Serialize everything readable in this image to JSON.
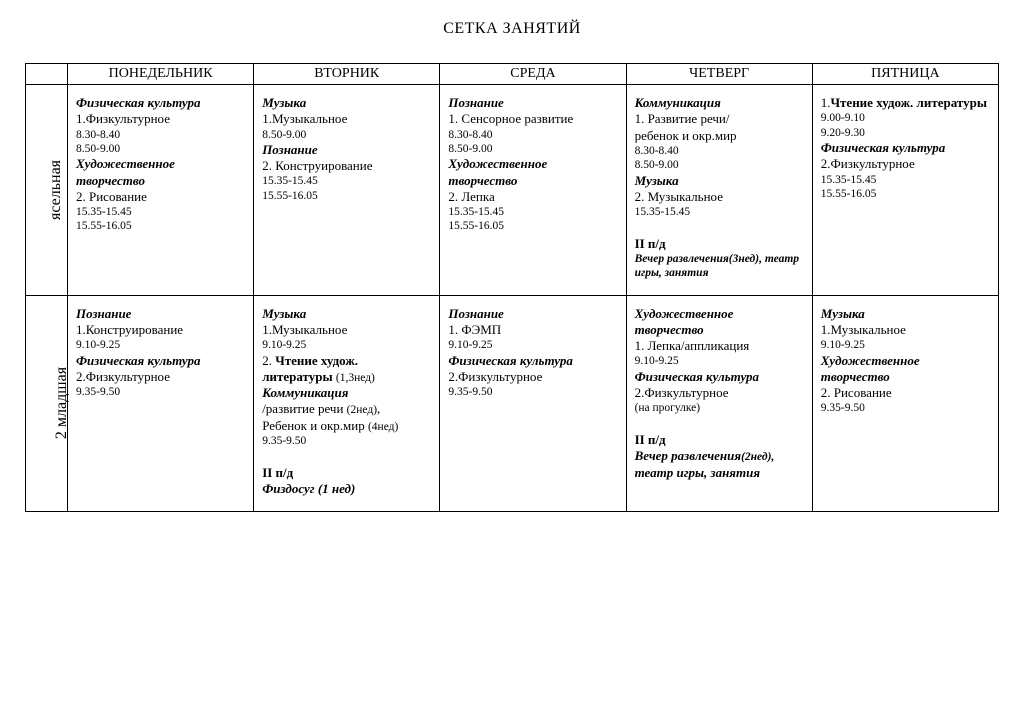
{
  "title": "СЕТКА ЗАНЯТИЙ",
  "days": [
    "ПОНЕДЕЛЬНИК",
    "ВТОРНИК",
    "СРЕДА",
    "ЧЕТВЕРГ",
    "ПЯТНИЦА"
  ],
  "rows": [
    {
      "group": "ясельная",
      "cells": [
        [
          {
            "t": "Физическая культура",
            "c": "b"
          },
          {
            "t": "1.Физкультурное"
          },
          {
            "t": "8.30-8.40",
            "c": "sm"
          },
          {
            "t": "8.50-9.00",
            "c": "sm"
          },
          {
            "t": "Художественное творчество",
            "c": "b"
          },
          {
            "t": "2. Рисование"
          },
          {
            "t": "15.35-15.45",
            "c": "sm"
          },
          {
            "t": "15.55-16.05",
            "c": "sm"
          }
        ],
        [
          {
            "t": "Музыка",
            "c": "b"
          },
          {
            "t": "1.Музыкальное"
          },
          {
            "t": "8.50-9.00",
            "c": "sm"
          },
          {
            "t": "Познание",
            "c": "b"
          },
          {
            "t": "2. Конструирование"
          },
          {
            "t": "15.35-15.45",
            "c": "sm"
          },
          {
            "t": "15.55-16.05",
            "c": "sm"
          }
        ],
        [
          {
            "t": "Познание",
            "c": "b"
          },
          {
            "t": "1. Сенсорное развитие"
          },
          {
            "t": " 8.30-8.40",
            "c": "sm"
          },
          {
            "t": " 8.50-9.00",
            "c": "sm"
          },
          {
            "t": "Художественное творчество",
            "c": "b"
          },
          {
            "t": "2. Лепка"
          },
          {
            "t": "15.35-15.45",
            "c": "sm"
          },
          {
            "t": "15.55-16.05",
            "c": "sm"
          }
        ],
        [
          {
            "t": "Коммуникация",
            "c": "b"
          },
          {
            "t": "1. Развитие речи/"
          },
          {
            "t": "ребенок и окр.мир"
          },
          {
            "t": "8.30-8.40",
            "c": "sm"
          },
          {
            "t": "8.50-9.00",
            "c": "sm"
          },
          {
            "t": "Музыка",
            "c": "b"
          },
          {
            "t": "2. Музыкальное"
          },
          {
            "t": "15.35-15.45",
            "c": "sm"
          },
          {
            "t": ""
          },
          {
            "t": "II п/д",
            "c": "bb"
          },
          {
            "t": "Вечер развлечения(3нед), театр игры, занятия",
            "c": "b sm"
          }
        ],
        [
          {
            "t": "1.<span class='bb'>Чтение худож. литературы</span>",
            "html": true
          },
          {
            "t": "9.00-9.10",
            "c": "sm"
          },
          {
            "t": "9.20-9.30",
            "c": "sm"
          },
          {
            "t": "Физическая культура",
            "c": "b"
          },
          {
            "t": "2.Физкультурное"
          },
          {
            "t": "15.35-15.45",
            "c": "sm"
          },
          {
            "t": "15.55-16.05",
            "c": "sm"
          }
        ]
      ]
    },
    {
      "group": "2 младшая",
      "cells": [
        [
          {
            "t": "Познание",
            "c": "b"
          },
          {
            "t": "1.Конструирование"
          },
          {
            "t": "9.10-9.25",
            "c": "sm"
          },
          {
            "t": "Физическая культура",
            "c": "b"
          },
          {
            "t": "2.Физкультурное"
          },
          {
            "t": "9.35-9.50",
            "c": "sm"
          }
        ],
        [
          {
            "t": "Музыка",
            "c": "b"
          },
          {
            "t": "1.Музыкальное"
          },
          {
            "t": "9.10-9.25",
            "c": "sm"
          },
          {
            "t": "2.  <span class='bb'>Чтение худож. литературы</span> <span class='sm'>(1,3нед)</span>",
            "html": true
          },
          {
            "t": "Коммуникация",
            "c": "b"
          },
          {
            "t": "/развитие речи <span class='sm'>(2нед)</span>,",
            "html": true
          },
          {
            "t": "Ребенок и окр.мир <span class='sm'>(4нед)</span>",
            "html": true
          },
          {
            "t": "9.35-9.50",
            "c": "sm"
          },
          {
            "t": ""
          },
          {
            "t": "II п/д",
            "c": "bb"
          },
          {
            "t": "Физдосуг (1 нед)",
            "c": "b"
          }
        ],
        [
          {
            "t": "Познание",
            "c": "b"
          },
          {
            "t": "1. ФЭМП"
          },
          {
            "t": "9.10-9.25",
            "c": "sm"
          },
          {
            "t": "Физическая культура",
            "c": "b"
          },
          {
            "t": "2.Физкультурное"
          },
          {
            "t": "9.35-9.50",
            "c": "sm"
          }
        ],
        [
          {
            "t": "Художественное творчество",
            "c": "b"
          },
          {
            "t": "1. Лепка/аппликация"
          },
          {
            "t": "9.10-9.25",
            "c": "sm"
          },
          {
            "t": "Физическая культура",
            "c": "b"
          },
          {
            "t": "2.Физкультурное"
          },
          {
            "t": "(на прогулке)",
            "c": "sm"
          },
          {
            "t": ""
          },
          {
            "t": "II п/д",
            "c": "bb"
          },
          {
            "t": "<span class='b'>Вечер развлечения</span><span class='b sm'>(2нед),</span>",
            "html": true
          },
          {
            "t": "театр игры, занятия",
            "c": "b"
          }
        ],
        [
          {
            "t": "Музыка",
            "c": "b"
          },
          {
            "t": "1.Музыкальное"
          },
          {
            "t": "9.10-9.25",
            "c": "sm"
          },
          {
            "t": "Художественное творчество",
            "c": "b"
          },
          {
            "t": "2. Рисование"
          },
          {
            "t": "9.35-9.50",
            "c": "sm"
          }
        ]
      ]
    }
  ]
}
